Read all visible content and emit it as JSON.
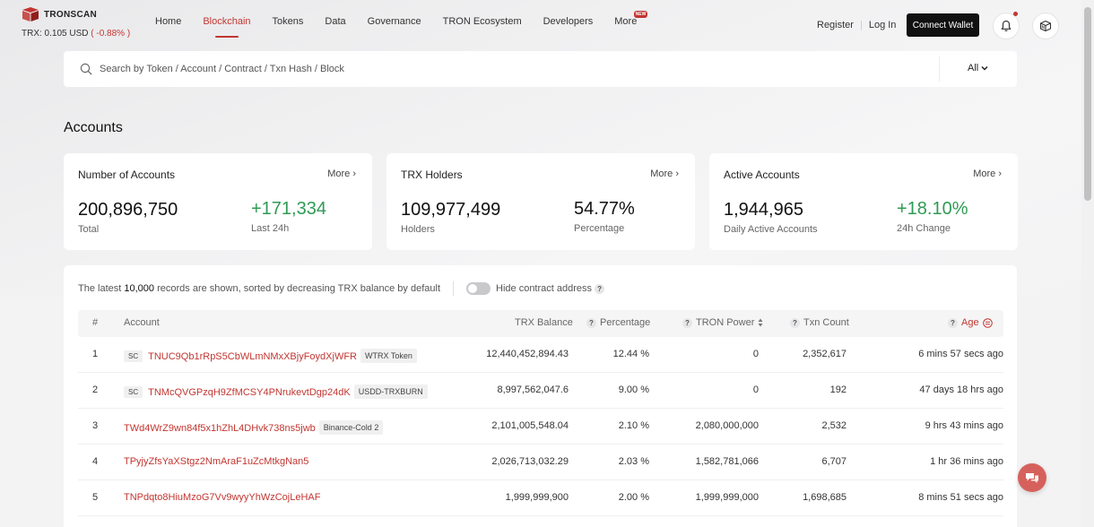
{
  "brand": {
    "name": "TRONSCAN",
    "price_label": "TRX: 0.105 USD",
    "price_change": "( -0.88% )"
  },
  "nav": {
    "items": [
      {
        "label": "Home"
      },
      {
        "label": "Blockchain"
      },
      {
        "label": "Tokens"
      },
      {
        "label": "Data"
      },
      {
        "label": "Governance"
      },
      {
        "label": "TRON Ecosystem"
      },
      {
        "label": "Developers"
      },
      {
        "label": "More",
        "badge": "NEW"
      }
    ],
    "active": "Blockchain"
  },
  "auth": {
    "register": "Register",
    "login": "Log In",
    "connect_wallet": "Connect Wallet"
  },
  "icons": {
    "bell": "bell-icon",
    "cube": "cube-icon",
    "search": "search-icon"
  },
  "search": {
    "placeholder": "Search by Token / Account / Contract / Txn Hash / Block",
    "filter": "All"
  },
  "page": {
    "title": "Accounts"
  },
  "cards": [
    {
      "title": "Number of Accounts",
      "more": "More",
      "main_value": "200,896,750",
      "main_label": "Total",
      "side_value": "+171,334",
      "side_label": "Last 24h"
    },
    {
      "title": "TRX Holders",
      "more": "More",
      "main_value": "109,977,499",
      "main_label": "Holders",
      "side_value": "54.77%",
      "side_label": "Percentage"
    },
    {
      "title": "Active Accounts",
      "more": "More",
      "main_value": "1,944,965",
      "main_label": "Daily Active Accounts",
      "side_value": "+18.10%",
      "side_label": "24h Change"
    }
  ],
  "table": {
    "note_prefix": "The latest",
    "note_count": "10,000",
    "note_suffix": "records are shown, sorted by decreasing TRX balance by default",
    "hide_contract_label": "Hide contract address",
    "columns": [
      "#",
      "Account",
      "TRX Balance",
      "Percentage",
      "TRON Power",
      "Txn Count",
      "Age"
    ],
    "rows": [
      {
        "rank": "1",
        "sc": "SC",
        "address": "TNUC9Qb1rRpS5CbWLmNMxXBjyFoydXjWFR",
        "tag": "WTRX Token",
        "balance": "12,440,452,894.43",
        "percentage": "12.44 %",
        "power": "0",
        "txn_count": "2,352,617",
        "age": "6 mins 57 secs ago"
      },
      {
        "rank": "2",
        "sc": "SC",
        "address": "TNMcQVGPzqH9ZfMCSY4PNrukevtDgp24dK",
        "tag": "USDD-TRXBURN",
        "balance": "8,997,562,047.6",
        "percentage": "9.00 %",
        "power": "0",
        "txn_count": "192",
        "age": "47 days 18 hrs ago"
      },
      {
        "rank": "3",
        "sc": "",
        "address": "TWd4WrZ9wn84f5x1hZhL4DHvk738ns5jwb",
        "tag": "Binance-Cold 2",
        "balance": "2,101,005,548.04",
        "percentage": "2.10 %",
        "power": "2,080,000,000",
        "txn_count": "2,532",
        "age": "9 hrs 43 mins ago"
      },
      {
        "rank": "4",
        "sc": "",
        "address": "TPyjyZfsYaXStgz2NmAraF1uZcMtkgNan5",
        "tag": "",
        "balance": "2,026,713,032.29",
        "percentage": "2.03 %",
        "power": "1,582,781,066",
        "txn_count": "6,707",
        "age": "1 hr 36 mins ago"
      },
      {
        "rank": "5",
        "sc": "",
        "address": "TNPdqto8HiuMzoG7Vv9wyyYhWzCojLeHAF",
        "tag": "",
        "balance": "1,999,999,900",
        "percentage": "2.00 %",
        "power": "1,999,999,000",
        "txn_count": "1,698,685",
        "age": "8 mins 51 secs ago"
      }
    ]
  },
  "colors": {
    "accent": "#c23631",
    "positive": "#2f9a55",
    "button_dark": "#111111"
  }
}
